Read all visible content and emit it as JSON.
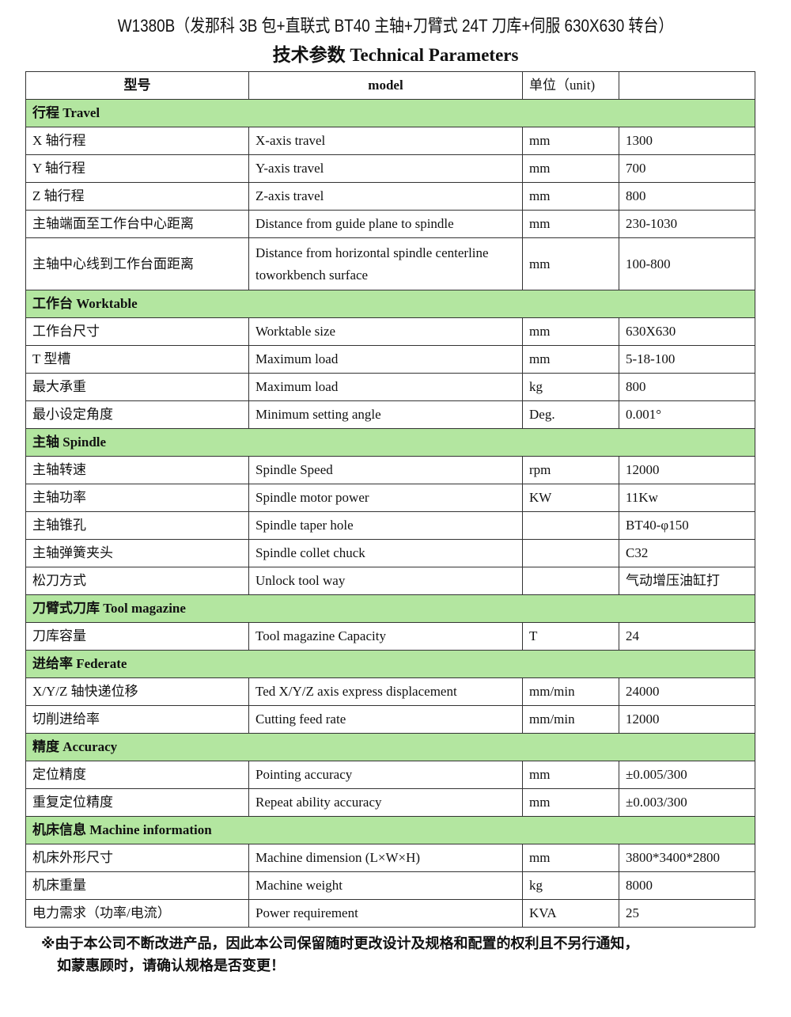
{
  "title": "W1380B（发那科 3B 包+直联式 BT40 主轴+刀臂式 24T 刀库+伺服 630X630 转台）",
  "subtitle": "技术参数 Technical Parameters",
  "colors": {
    "section_bg": "#b3e6a0"
  },
  "header": {
    "cn": "型号",
    "model": "model",
    "unit": "单位（unit)",
    "value": ""
  },
  "sections": [
    {
      "title": "行程 Travel",
      "rows": [
        {
          "cn": "X 轴行程",
          "en": "X-axis travel",
          "unit": "mm",
          "value": "1300"
        },
        {
          "cn": "Y 轴行程",
          "en": "Y-axis travel",
          "unit": "mm",
          "value": "700"
        },
        {
          "cn": "Z 轴行程",
          "en": "Z-axis travel",
          "unit": "mm",
          "value": "800"
        },
        {
          "cn": "主轴端面至工作台中心距离",
          "en": "Distance from guide plane to spindle",
          "unit": "mm",
          "value": "230-1030"
        },
        {
          "cn": "主轴中心线到工作台面距离",
          "en": "Distance from horizontal spindle centerline toworkbench surface",
          "unit": "mm",
          "value": "100-800"
        }
      ]
    },
    {
      "title": "工作台 Worktable",
      "rows": [
        {
          "cn": "工作台尺寸",
          "en": "Worktable size",
          "unit": "mm",
          "value": "630X630"
        },
        {
          "cn": "T 型槽",
          "en": "Maximum load",
          "unit": "mm",
          "value": "5-18-100"
        },
        {
          "cn": "最大承重",
          "en": "Maximum load",
          "unit": "kg",
          "value": "800"
        },
        {
          "cn": "最小设定角度",
          "en": "Minimum setting angle",
          "unit": "Deg.",
          "value": "0.001°"
        }
      ]
    },
    {
      "title": "主轴 Spindle",
      "rows": [
        {
          "cn": "主轴转速",
          "en": "Spindle Speed",
          "unit": "rpm",
          "value": "12000"
        },
        {
          "cn": "主轴功率",
          "en": "Spindle motor power",
          "unit": "KW",
          "value": "11Kw"
        },
        {
          "cn": "主轴锥孔",
          "en": "Spindle taper hole",
          "unit": "",
          "value": "BT40-φ150"
        },
        {
          "cn": "主轴弹簧夹头",
          "en": "Spindle collet chuck",
          "unit": "",
          "value": "C32"
        },
        {
          "cn": "松刀方式",
          "en": "Unlock tool way",
          "unit": "",
          "value": "气动增压油缸打"
        }
      ]
    },
    {
      "title": "刀臂式刀库 Tool magazine",
      "rows": [
        {
          "cn": "刀库容量",
          "en": "Tool magazine Capacity",
          "unit": "T",
          "value": "24"
        }
      ]
    },
    {
      "title": "进给率 Federate",
      "rows": [
        {
          "cn": "X/Y/Z 轴快递位移",
          "en": "Ted X/Y/Z axis express displacement",
          "unit": "mm/min",
          "value": "24000"
        },
        {
          "cn": "切削进给率",
          "en": "Cutting feed rate",
          "unit": "mm/min",
          "value": "12000"
        }
      ]
    },
    {
      "title": "精度 Accuracy",
      "rows": [
        {
          "cn": "定位精度",
          "en": "Pointing accuracy",
          "unit": "mm",
          "value": "±0.005/300"
        },
        {
          "cn": "重复定位精度",
          "en": "Repeat ability accuracy",
          "unit": "mm",
          "value": "±0.003/300"
        }
      ]
    },
    {
      "title": "机床信息 Machine information",
      "rows": [
        {
          "cn": "机床外形尺寸",
          "en": "Machine dimension (L×W×H)",
          "unit": "mm",
          "value": "3800*3400*2800"
        },
        {
          "cn": "机床重量",
          "en": "Machine weight",
          "unit": "kg",
          "value": "8000"
        },
        {
          "cn": "电力需求（功率/电流）",
          "en": "Power requirement",
          "unit": "KVA",
          "value": "25"
        }
      ]
    }
  ],
  "note": [
    "※由于本公司不断改进产品，因此本公司保留随时更改设计及规格和配置的权利且不另行通知，",
    "如蒙惠顾时，请确认规格是否变更！"
  ]
}
